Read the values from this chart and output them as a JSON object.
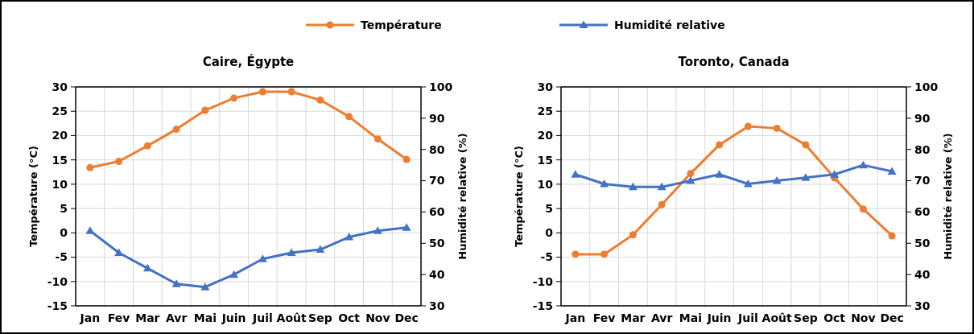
{
  "chart_data": [
    {
      "type": "line",
      "title": "Caire, Égypte",
      "categories": [
        "Jan",
        "Fev",
        "Mar",
        "Avr",
        "Mai",
        "Juin",
        "Juil",
        "Août",
        "Sep",
        "Oct",
        "Nov",
        "Dec"
      ],
      "xlabel": null,
      "ylabel": "Température (°C)",
      "y2label": "Humidité relative (%)",
      "series": [
        {
          "name": "Température",
          "color": "#ed7d31",
          "marker": "circle",
          "values": [
            13.4,
            14.7,
            17.9,
            21.3,
            25.2,
            27.7,
            29.0,
            29.0,
            27.3,
            23.9,
            19.3,
            15.1
          ]
        },
        {
          "name": "Humidité relative",
          "color": "#4472c4",
          "marker": "triangle",
          "axis": "y2",
          "values": [
            54,
            47,
            42,
            37,
            36,
            40,
            45,
            47,
            48,
            52,
            54,
            55
          ]
        }
      ],
      "ylim": [
        -15,
        30
      ],
      "yticks": [
        -15,
        -10,
        -5,
        0,
        5,
        10,
        15,
        20,
        25,
        30
      ],
      "y2lim": [
        30,
        100
      ],
      "y2ticks": [
        30,
        40,
        50,
        60,
        70,
        80,
        90,
        100
      ],
      "grid": true,
      "legend": "top"
    },
    {
      "type": "line",
      "title": "Toronto, Canada",
      "categories": [
        "Jan",
        "Fev",
        "Mar",
        "Avr",
        "Mai",
        "Juin",
        "Juil",
        "Août",
        "Sep",
        "Oct",
        "Nov",
        "Dec"
      ],
      "ylabel": "Température (°C)",
      "y2label": "Humidité relative (%)",
      "series": [
        {
          "color": "#ed7d31",
          "marker": "circle",
          "values": [
            -4.4,
            -4.4,
            -0.4,
            5.8,
            12.2,
            18.1,
            21.9,
            21.5,
            18.1,
            11.3,
            4.9,
            -0.6
          ]
        },
        {
          "color": "#4472c4",
          "marker": "triangle",
          "axis": "y2",
          "values": [
            72,
            69,
            68,
            68,
            70,
            72,
            69,
            70,
            71,
            72,
            75,
            73
          ]
        }
      ],
      "ylim": [
        -15,
        30
      ],
      "yticks": [
        -15,
        -10,
        -5,
        0,
        5,
        10,
        15,
        20,
        25,
        30
      ],
      "y2lim": [
        30,
        100
      ],
      "y2ticks": [
        30,
        40,
        50,
        60,
        70,
        80,
        90,
        100
      ],
      "grid": true,
      "legend": false
    }
  ]
}
